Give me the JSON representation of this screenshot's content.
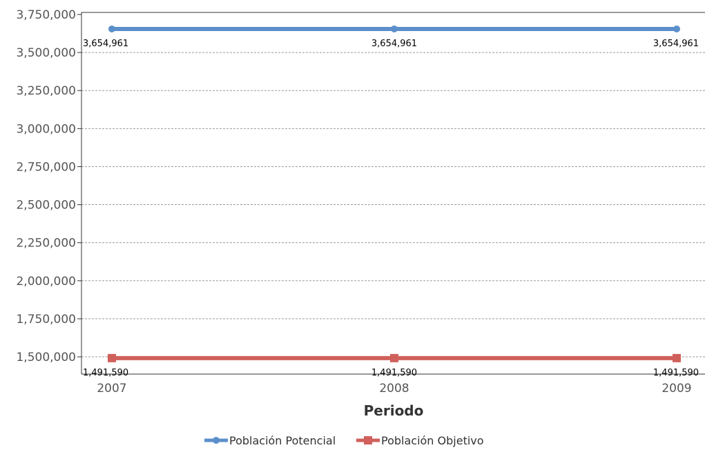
{
  "chart_data": {
    "type": "line",
    "title": "",
    "xlabel": "Periodo",
    "ylabel": "",
    "categories": [
      "2007",
      "2008",
      "2009"
    ],
    "ylim": [
      1500000,
      3750000
    ],
    "yticks": [
      1500000,
      1750000,
      2000000,
      2250000,
      2500000,
      2750000,
      3000000,
      3250000,
      3500000,
      3750000
    ],
    "ytick_labels": [
      "1,500,000",
      "1,750,000",
      "2,000,000",
      "2,250,000",
      "2,500,000",
      "2,750,000",
      "3,000,000",
      "3,250,000",
      "3,500,000",
      "3,750,000"
    ],
    "grid": true,
    "legend_position": "bottom",
    "series": [
      {
        "name": "Población Potencial",
        "values": [
          3654961,
          3654961,
          3654961
        ],
        "labels": [
          "3,654,961",
          "3,654,961",
          "3,654,961"
        ],
        "color": "#5b8fcb",
        "marker": "circle"
      },
      {
        "name": "Población Objetivo",
        "values": [
          1491590,
          1491590,
          1491590
        ],
        "labels": [
          "1,491,590",
          "1,491,590",
          "1,491,590"
        ],
        "color": "#d0605b",
        "marker": "square"
      }
    ]
  }
}
